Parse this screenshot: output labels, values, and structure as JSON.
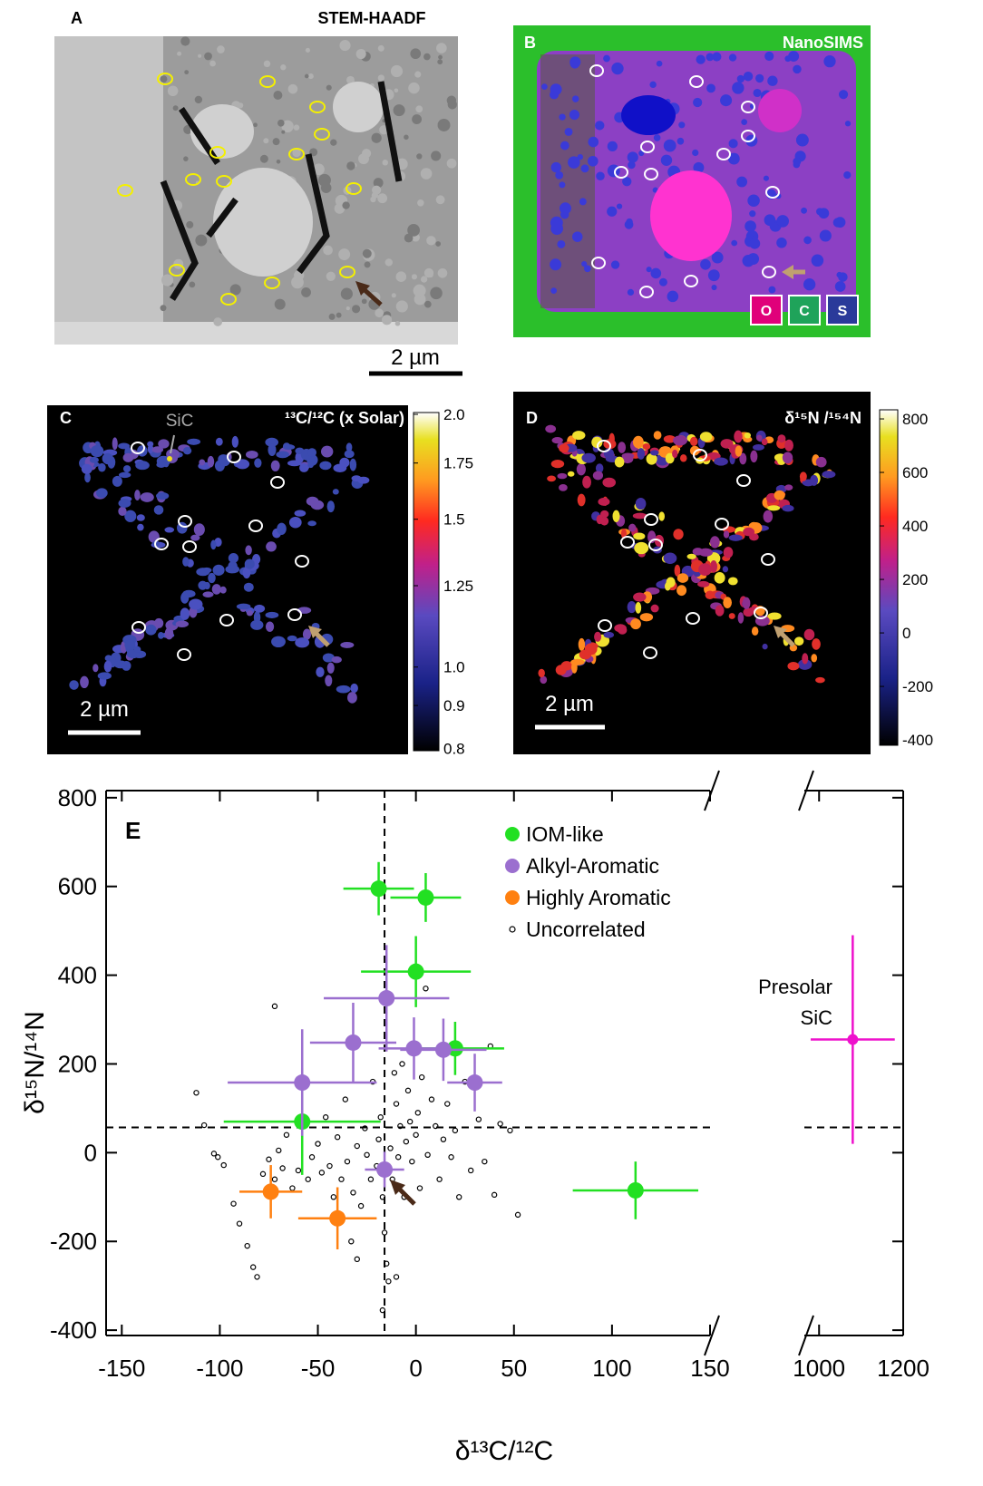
{
  "panels": [
    {
      "letter": "A",
      "title": "STEM-HAADF",
      "scale_bar": "2 µm"
    },
    {
      "letter": "B",
      "title": "NanoSIMS",
      "keys": [
        "O",
        "C",
        "S"
      ]
    },
    {
      "letter": "C",
      "title": "¹³C/¹²C (x Solar)",
      "annotation": "SiC",
      "scale_bar": "2 µm",
      "colorbar": {
        "lim": [
          0.795,
          2.01
        ],
        "log": true,
        "ticks": [
          {
            "value": 2,
            "label": "2.0"
          },
          1.75,
          1.5,
          1.25,
          {
            "value": 1,
            "label": "1.0"
          },
          0.9,
          0.8
        ]
      }
    },
    {
      "letter": "D",
      "title": "δ¹⁵N /¹⁵⁴N",
      "scale_bar": "2 µm",
      "colorbar": {
        "lim": [
          -420,
          834
        ],
        "log": false,
        "ticks": [
          800,
          600,
          400,
          200,
          0,
          -200,
          -400
        ]
      }
    }
  ],
  "chart_data": {
    "type": "scatter",
    "letter": "E",
    "x_label": "δ¹³C/¹²C",
    "y_label": "δ¹⁵N/¹⁴N",
    "xlim": [
      -158,
      150
    ],
    "x2lim": [
      965,
      1200
    ],
    "ylim": [
      -412,
      816
    ],
    "xticks": [
      -150,
      -100,
      -50,
      0,
      50,
      100,
      150
    ],
    "x2ticks": [
      1000,
      1200
    ],
    "yticks": [
      -400,
      -200,
      0,
      200,
      400,
      600,
      800
    ],
    "ref_lines": {
      "x": -16,
      "y": 57
    },
    "series": [
      {
        "name": "IOM-like",
        "color": "#22e022",
        "x": [
          -19,
          5,
          0,
          20,
          -58,
          112
        ],
        "values": [
          595,
          575,
          408,
          235,
          70,
          -85
        ],
        "xerr": [
          18,
          18,
          28,
          25,
          40,
          32
        ],
        "yerr": [
          60,
          55,
          80,
          60,
          120,
          65
        ]
      },
      {
        "name": "Alkyl-Aromatic",
        "color": "#9b6fcf",
        "x": [
          -15,
          -32,
          -58,
          -1,
          14,
          30,
          -16
        ],
        "values": [
          348,
          248,
          158,
          235,
          232,
          158,
          -38
        ],
        "xerr": [
          32,
          22,
          38,
          18,
          22,
          14,
          10
        ],
        "yerr": [
          120,
          90,
          120,
          70,
          70,
          65,
          40
        ]
      },
      {
        "name": "Highly Aromatic",
        "color": "#ff8010",
        "x": [
          -74,
          -40
        ],
        "values": [
          -88,
          -148
        ],
        "xerr": [
          16,
          20
        ],
        "yerr": [
          60,
          70
        ]
      },
      {
        "name": "Uncorrelated",
        "color": "#000000",
        "x": [
          -112,
          -108,
          -103,
          -101,
          -98,
          -93,
          -90,
          -86,
          -83,
          -81,
          -78,
          -75,
          -72,
          -70,
          -68,
          -66,
          -63,
          -60,
          -55,
          -53,
          -50,
          -48,
          -46,
          -44,
          -42,
          -40,
          -38,
          -36,
          -35,
          -33,
          -32,
          -30,
          -28,
          -26,
          -25,
          -23,
          -22,
          -20,
          -19,
          -18,
          -17,
          -16,
          -15,
          -14,
          -13,
          -12,
          -11,
          -10,
          -9,
          -8,
          -7,
          -6,
          -5,
          -4,
          -3,
          -2,
          0,
          1,
          2,
          3,
          5,
          6,
          8,
          10,
          12,
          14,
          16,
          18,
          20,
          22,
          25,
          28,
          32,
          35,
          38,
          40,
          43,
          48,
          52,
          -72,
          -17,
          -10,
          -30
        ],
        "values": [
          135,
          62,
          -2,
          -10,
          -28,
          -115,
          -160,
          -210,
          -258,
          -280,
          -48,
          -15,
          -60,
          5,
          -35,
          40,
          -80,
          -40,
          -60,
          -10,
          20,
          -45,
          80,
          -30,
          -100,
          35,
          -60,
          120,
          -20,
          -200,
          -90,
          15,
          -120,
          55,
          -5,
          -60,
          160,
          -30,
          30,
          80,
          -100,
          -180,
          -250,
          -290,
          10,
          -60,
          180,
          110,
          -10,
          60,
          200,
          -100,
          25,
          140,
          70,
          -20,
          40,
          90,
          -80,
          170,
          370,
          -5,
          120,
          60,
          -60,
          30,
          110,
          -10,
          50,
          -100,
          160,
          -40,
          75,
          -20,
          240,
          -95,
          65,
          50,
          -140,
          330,
          -355,
          -280,
          -240
        ]
      }
    ],
    "presolar": {
      "name": "Presolar SiC",
      "color": "#ee11cc",
      "axis": "x2",
      "x": [
        1080
      ],
      "values": [
        255
      ],
      "xerr": [
        100
      ],
      "yerr": [
        235
      ]
    }
  }
}
